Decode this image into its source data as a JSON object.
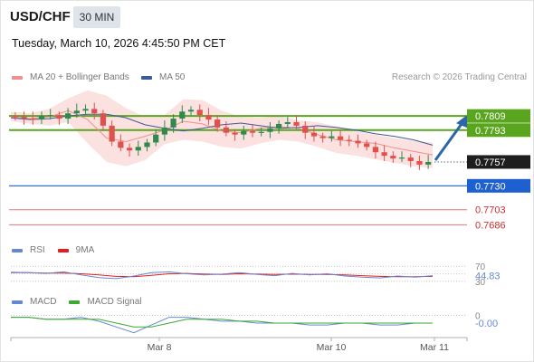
{
  "header": {
    "symbol": "USD/CHF",
    "timeframe": "30 MIN",
    "timestamp": "Tuesday, March 10, 2026 4:45:50 PM CET"
  },
  "legend": {
    "ma20_label": "MA 20 + Bollinger Bands",
    "ma50_label": "MA 50",
    "copyright": "Research © 2026 Trading Central"
  },
  "colors": {
    "bull": "#2f8a4c",
    "bear": "#e0514d",
    "resistance": "#5aa51e",
    "pivot": "#1e60d0",
    "support": "#e07878",
    "bollinger_fill": "#fcdcdc",
    "ma20": "#f08f8f",
    "ma50": "#3d5a99",
    "arrow": "#2c66a8",
    "rsi": "#6688d4",
    "rsi_ma": "#e02020",
    "macd": "#6688d4",
    "macd_signal": "#3aaa30"
  },
  "chart_data": [
    {
      "type": "candlestick",
      "panel": "price",
      "title": "USD/CHF",
      "ylim": [
        0.7672,
        0.7846
      ],
      "x_ticks": [
        "Mar 8",
        "Mar 10",
        "Mar 11"
      ],
      "levels": [
        {
          "name": "resistance-2",
          "value": 0.7809,
          "label": "0.7809",
          "kind": "resistance"
        },
        {
          "name": "resistance-1",
          "value": 0.7793,
          "label": "0.7793",
          "kind": "resistance"
        },
        {
          "name": "last-price",
          "value": 0.7757,
          "label": "0.7757",
          "kind": "current"
        },
        {
          "name": "pivot",
          "value": 0.773,
          "label": "0.7730",
          "kind": "pivot"
        },
        {
          "name": "support-1",
          "value": 0.7703,
          "label": "0.7703",
          "kind": "support"
        },
        {
          "name": "support-2",
          "value": 0.7686,
          "label": "0.7686",
          "kind": "support"
        }
      ],
      "ma50": [
        0.7807,
        0.7805,
        0.7806,
        0.7809,
        0.7811,
        0.7811,
        0.7807,
        0.7799,
        0.7795,
        0.7792,
        0.7795,
        0.7799,
        0.7801,
        0.7798,
        0.7795,
        0.7796,
        0.7798,
        0.7796,
        0.7793,
        0.7789,
        0.7786,
        0.7782,
        0.7776
      ],
      "ma20": [
        0.7808,
        0.7806,
        0.7808,
        0.7815,
        0.7805,
        0.7784,
        0.778,
        0.7786,
        0.7793,
        0.7803,
        0.78,
        0.7792,
        0.779,
        0.7795,
        0.7797,
        0.7795,
        0.7788,
        0.7782,
        0.778,
        0.7778,
        0.7773,
        0.7769,
        0.7765
      ],
      "bollinger_upper": [
        0.7814,
        0.7812,
        0.7817,
        0.7829,
        0.7838,
        0.7832,
        0.7818,
        0.7808,
        0.781,
        0.7828,
        0.7827,
        0.7815,
        0.7808,
        0.7807,
        0.7809,
        0.7804,
        0.7802,
        0.7797,
        0.7792,
        0.7788,
        0.7784,
        0.7781,
        0.7779
      ],
      "bollinger_lower": [
        0.7803,
        0.78,
        0.7798,
        0.7802,
        0.7778,
        0.7757,
        0.7752,
        0.7759,
        0.7777,
        0.7782,
        0.778,
        0.7774,
        0.7772,
        0.7778,
        0.7782,
        0.778,
        0.7774,
        0.7767,
        0.7764,
        0.776,
        0.7756,
        0.7752,
        0.775
      ],
      "closes": [
        0.7808,
        0.7806,
        0.7805,
        0.7809,
        0.781,
        0.7806,
        0.7812,
        0.7815,
        0.7817,
        0.7812,
        0.7798,
        0.778,
        0.7773,
        0.777,
        0.7774,
        0.7779,
        0.7788,
        0.7796,
        0.7806,
        0.7814,
        0.7816,
        0.781,
        0.7805,
        0.7796,
        0.779,
        0.7788,
        0.7792,
        0.779,
        0.7791,
        0.7795,
        0.78,
        0.7802,
        0.7798,
        0.779,
        0.7786,
        0.7784,
        0.7786,
        0.7782,
        0.7781,
        0.7778,
        0.7774,
        0.7768,
        0.7764,
        0.7761,
        0.7762,
        0.7758,
        0.7754,
        0.7757
      ]
    },
    {
      "type": "line",
      "panel": "rsi",
      "title": "RSI",
      "ylim": [
        20,
        80
      ],
      "reference_levels": [
        70,
        50,
        30
      ],
      "last_value": "44.83",
      "series": [
        {
          "name": "RSI",
          "values": [
            54,
            53,
            51,
            55,
            47,
            40,
            37,
            44,
            53,
            55,
            50,
            47,
            49,
            53,
            48,
            45,
            51,
            47,
            50,
            44,
            41,
            39,
            44,
            41,
            45
          ]
        },
        {
          "name": "9MA",
          "values": [
            53,
            53,
            52,
            52,
            50,
            47,
            43,
            42,
            46,
            50,
            51,
            49,
            48,
            50,
            49,
            48,
            49,
            48,
            48,
            47,
            45,
            43,
            42,
            42,
            43
          ]
        }
      ]
    },
    {
      "type": "line",
      "panel": "macd",
      "title": "MACD",
      "ylim": [
        -0.0011,
        0.0003
      ],
      "reference_levels": [
        0
      ],
      "last_value": "-0.00",
      "series": [
        {
          "name": "MACD",
          "values": [
            -0.0001,
            -0.0001,
            -0.0002,
            -0.0002,
            -0.0001,
            -0.0003,
            -0.0006,
            -0.0009,
            -0.0005,
            -0.0001,
            -0.0001,
            -0.0002,
            -0.0003,
            -0.0003,
            -0.0004,
            -0.0004,
            -0.0004,
            -0.0005,
            -0.0005,
            -0.0004,
            -0.0004,
            -0.0005,
            -0.0005,
            -0.0004,
            -0.0004
          ]
        },
        {
          "name": "MACD Signal",
          "values": [
            -0.0001,
            -0.0001,
            -0.0002,
            -0.0002,
            -0.0002,
            -0.0002,
            -0.0004,
            -0.0006,
            -0.0006,
            -0.0004,
            -0.0002,
            -0.0002,
            -0.0002,
            -0.0003,
            -0.0003,
            -0.0004,
            -0.0004,
            -0.0004,
            -0.0004,
            -0.0004,
            -0.0004,
            -0.0004,
            -0.0004,
            -0.0004,
            -0.0004
          ]
        }
      ]
    }
  ],
  "rsi_legend": {
    "rsi_label": "RSI",
    "ma_label": "9MA"
  },
  "macd_legend": {
    "macd_label": "MACD",
    "signal_label": "MACD Signal"
  }
}
